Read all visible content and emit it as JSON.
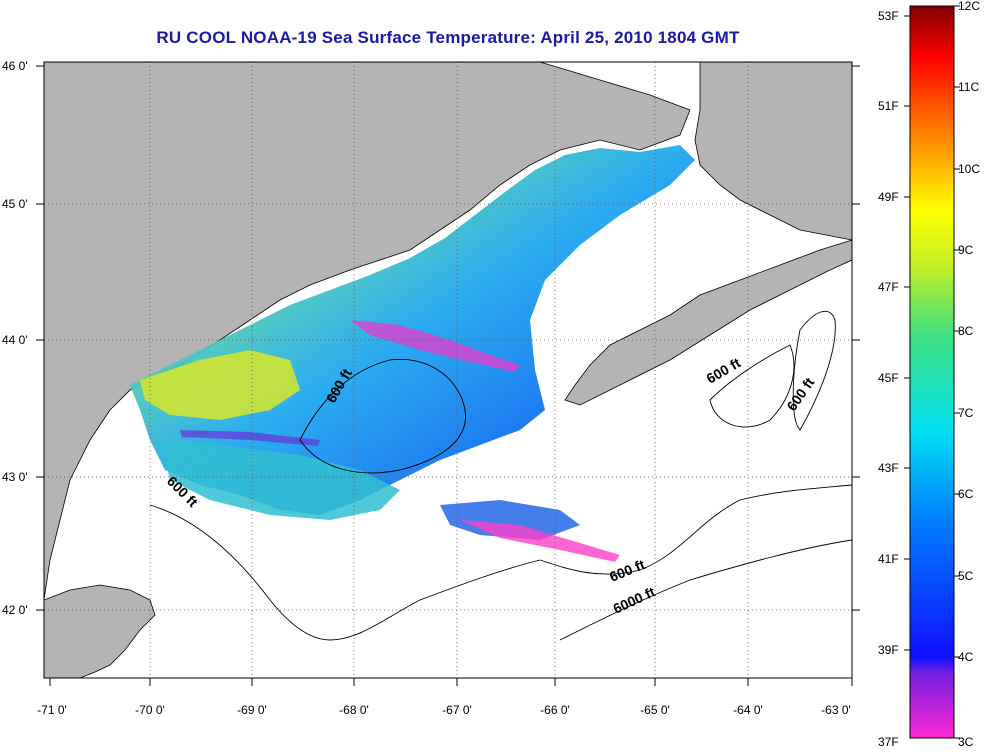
{
  "title": "RU COOL  NOAA-19  Sea Surface Temperature:  April 25, 2010 1804 GMT",
  "axes": {
    "lon_labels": [
      "-71 0'",
      "-70 0'",
      "-69 0'",
      "-68 0'",
      "-67 0'",
      "-66 0'",
      "-65 0'",
      "-64 0'",
      "-63 0'"
    ],
    "lat_labels": [
      "46 0'",
      "45 0'",
      "44 0'",
      "43 0'",
      "42 0'"
    ]
  },
  "colorbar": {
    "fahrenheit": [
      "53F",
      "51F",
      "49F",
      "47F",
      "45F",
      "43F",
      "41F",
      "39F",
      "37F"
    ],
    "celsius": [
      "12C",
      "11C",
      "10C",
      "9C",
      "8C",
      "7C",
      "6C",
      "5C",
      "4C",
      "3C"
    ]
  },
  "contour_labels": [
    "600 ft",
    "600 ft",
    "600 ft",
    "600 ft",
    "600 ft",
    "6000 ft"
  ],
  "colors": {
    "land": "#b4b4b4",
    "title": "#1a1aa8",
    "no_data": "#ffffff"
  }
}
